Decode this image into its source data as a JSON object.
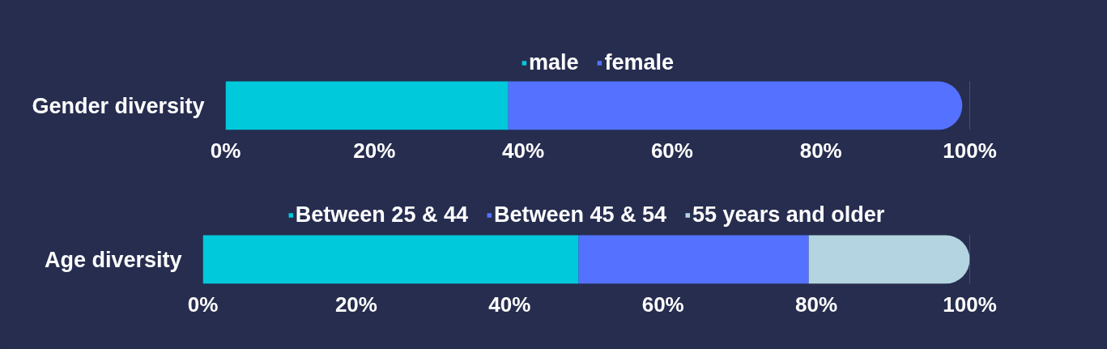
{
  "chart_data": [
    {
      "type": "bar",
      "orientation": "horizontal",
      "stacked": true,
      "categories": [
        "Gender diversity"
      ],
      "series": [
        {
          "name": "male",
          "color": "#00c9dc",
          "values": [
            38
          ]
        },
        {
          "name": "female",
          "color": "#5472ff",
          "values": [
            61
          ]
        }
      ],
      "xlim": [
        0,
        100
      ],
      "xticks": [
        {
          "value": 0,
          "label": "0%"
        },
        {
          "value": 20,
          "label": "20%"
        },
        {
          "value": 40,
          "label": "40%"
        },
        {
          "value": 60,
          "label": "60%"
        },
        {
          "value": 80,
          "label": "80%"
        },
        {
          "value": 100,
          "label": "100%"
        }
      ],
      "ref_lines": [
        {
          "axis": "x",
          "value": 100,
          "color": "#6e7491"
        }
      ],
      "legend": "top"
    },
    {
      "type": "bar",
      "orientation": "horizontal",
      "stacked": true,
      "categories": [
        "Age diversity"
      ],
      "series": [
        {
          "name": "Between 25 & 44",
          "color": "#00c9dc",
          "values": [
            49
          ]
        },
        {
          "name": "Between 45 & 54",
          "color": "#5472ff",
          "values": [
            30
          ]
        },
        {
          "name": "55 years and older",
          "color": "#b3d4e0",
          "values": [
            21
          ]
        }
      ],
      "xlim": [
        0,
        100
      ],
      "xticks": [
        {
          "value": 0,
          "label": "0%"
        },
        {
          "value": 20,
          "label": "20%"
        },
        {
          "value": 40,
          "label": "40%"
        },
        {
          "value": 60,
          "label": "60%"
        },
        {
          "value": 80,
          "label": "80%"
        },
        {
          "value": 100,
          "label": "100%"
        }
      ],
      "ref_lines": [
        {
          "axis": "x",
          "value": 100,
          "color": "#6e7491"
        }
      ],
      "legend": "top"
    }
  ]
}
